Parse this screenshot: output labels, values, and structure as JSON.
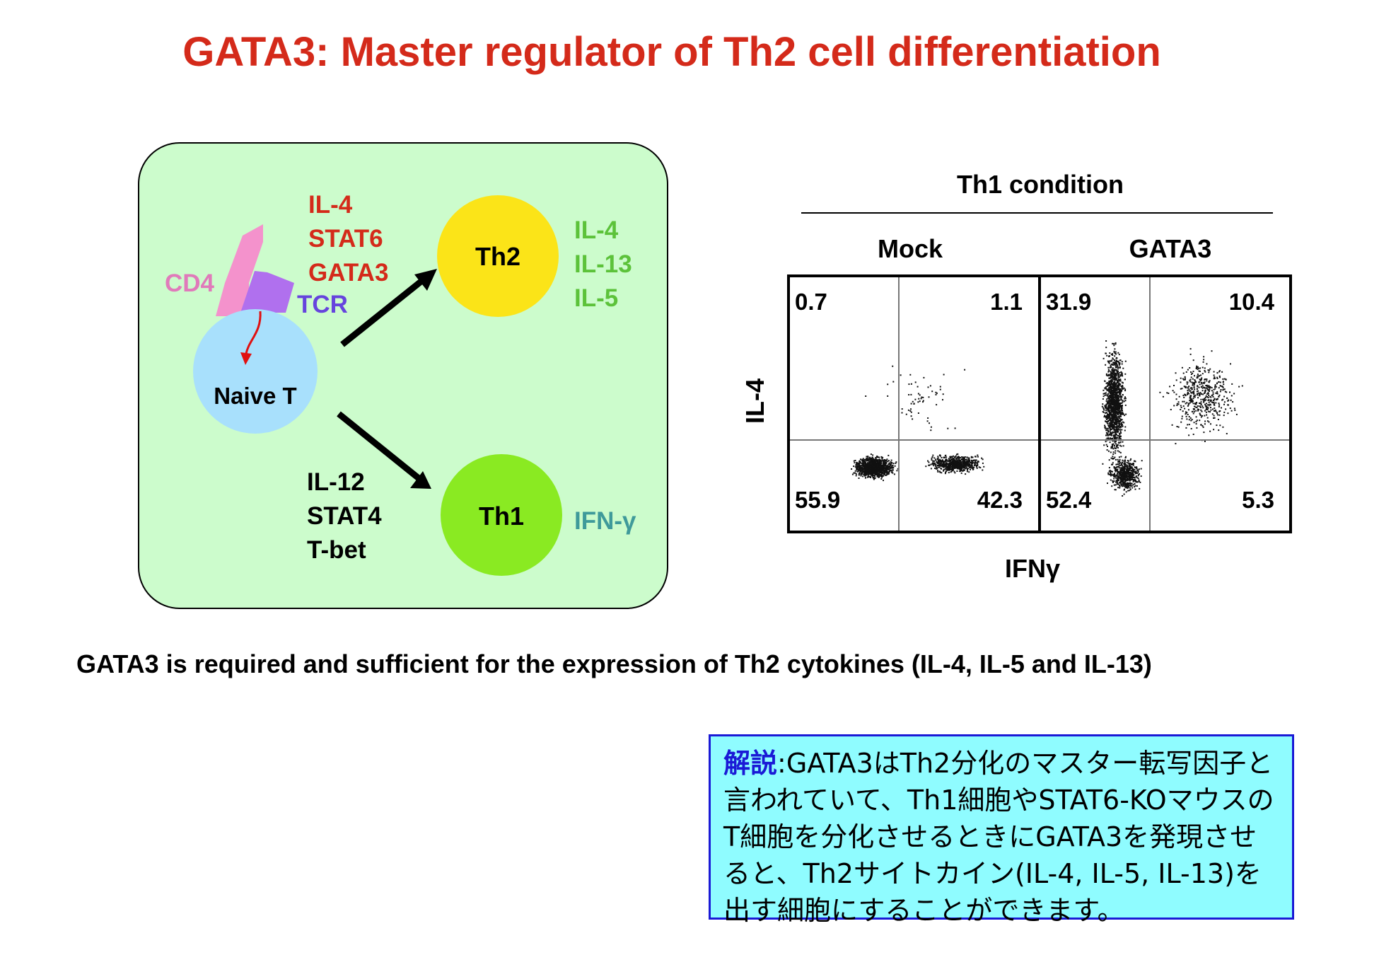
{
  "title": "GATA3: Master regulator of Th2 cell differentiation",
  "left_diagram": {
    "cd4_label": "CD4",
    "tcr_label": "TCR",
    "naive_label": "Naive T",
    "th2_label": "Th2",
    "th1_label": "Th1",
    "th2_inducers": [
      "IL-4",
      "STAT6",
      "GATA3"
    ],
    "th2_cytokines": [
      "IL-4",
      "IL-13",
      "IL-5"
    ],
    "th1_inducers": [
      "IL-12",
      "STAT4",
      "T-bet"
    ],
    "th1_cytokine": "IFN-γ",
    "colors": {
      "panel": "#ccfccc",
      "th2_cell": "#fbe418",
      "th1_cell": "#8aea22",
      "naive_cell": "#a8e0fc",
      "cd4": "#f492cc",
      "tcr": "#b070ee",
      "red_text": "#d42a1a",
      "green_text": "#5cc23a",
      "teal_text": "#3f9a9a",
      "tcr_text": "#6644dd",
      "cd4_text": "#e07aba"
    }
  },
  "flow_plot": {
    "condition": "Th1 condition",
    "panels": [
      {
        "name": "Mock",
        "quadrants": {
          "upper_left": "0.7",
          "upper_right": "1.1",
          "lower_left": "55.9",
          "lower_right": "42.3"
        }
      },
      {
        "name": "GATA3",
        "quadrants": {
          "upper_left": "31.9",
          "upper_right": "10.4",
          "lower_left": "52.4",
          "lower_right": "5.3"
        }
      }
    ],
    "y_axis": "IL-4",
    "x_axis": "IFNγ"
  },
  "caption": "GATA3 is required and sufficient for the expression of Th2 cytokines (IL-4, IL-5 and IL-13)",
  "note": {
    "heading": "解説",
    "body": ":GATA3はTh2分化のマスター転写因子と言われていて、Th1細胞やSTAT6-KOマウスのT細胞を分化させるときにGATA3を発現させると、Th2サイトカイン(IL-4, IL-5, IL-13)を出す細胞にすることができます。"
  }
}
